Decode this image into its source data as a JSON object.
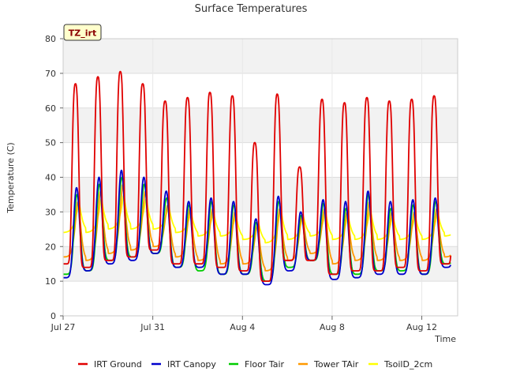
{
  "chart_data": {
    "type": "line",
    "title": "Surface Temperatures",
    "tag": "TZ_irt",
    "xlabel": "Time",
    "ylabel": "Temperature (C)",
    "xlim": [
      0,
      17.6
    ],
    "ylim": [
      0,
      80
    ],
    "yticks": [
      0,
      10,
      20,
      30,
      40,
      50,
      60,
      70,
      80
    ],
    "xticks": [
      {
        "day": 0,
        "label": "Jul 27"
      },
      {
        "day": 4,
        "label": "Jul 31"
      },
      {
        "day": 8,
        "label": "Aug 4"
      },
      {
        "day": 12,
        "label": "Aug 8"
      },
      {
        "day": 16,
        "label": "Aug 12"
      }
    ],
    "grid": true,
    "legend_position": "bottom",
    "daily_peaks": {
      "days": [
        "Jul 27",
        "Jul 28",
        "Jul 29",
        "Jul 30",
        "Jul 31",
        "Aug 1",
        "Aug 2",
        "Aug 3",
        "Aug 4",
        "Aug 5",
        "Aug 6",
        "Aug 7",
        "Aug 8",
        "Aug 9",
        "Aug 10",
        "Aug 11",
        "Aug 12",
        "Aug 13"
      ],
      "note_units": "C"
    },
    "series": [
      {
        "name": "IRT Ground",
        "color": "#e00000",
        "daily_max": [
          67,
          69,
          70.5,
          67,
          62,
          63,
          64.5,
          63.5,
          50,
          64,
          43,
          62.5,
          61.5,
          63,
          62,
          62.5,
          63.5,
          62
        ],
        "daily_min": [
          15,
          14,
          16,
          17,
          19,
          15,
          15,
          14,
          13,
          10,
          16,
          16,
          12,
          13,
          13,
          14,
          13,
          15
        ]
      },
      {
        "name": "IRT Canopy",
        "color": "#0000cc",
        "daily_max": [
          37,
          40,
          42,
          40,
          36,
          33,
          34,
          33,
          28,
          34.5,
          30,
          33.5,
          33,
          36,
          33,
          33.5,
          34,
          33
        ],
        "daily_min": [
          11,
          13,
          15,
          16,
          18,
          14,
          14,
          12,
          12,
          9,
          13,
          16,
          10.5,
          11,
          12,
          12,
          12,
          14
        ]
      },
      {
        "name": "Floor Tair",
        "color": "#00cc00",
        "daily_max": [
          35,
          38,
          40,
          38,
          34,
          32,
          33,
          32,
          27,
          33,
          29,
          32.5,
          31,
          35,
          31,
          32,
          33,
          32
        ],
        "daily_min": [
          12,
          13,
          16,
          17,
          18,
          14,
          13,
          12,
          12,
          10,
          14,
          16,
          12,
          12,
          13,
          13,
          12,
          15
        ]
      },
      {
        "name": "Tower TAir",
        "color": "#ff9900",
        "daily_max": [
          33,
          36,
          38,
          36,
          32,
          31,
          31,
          30,
          26,
          31,
          29,
          31,
          30,
          33,
          30,
          30,
          31,
          30
        ],
        "daily_min": [
          17,
          16,
          18,
          19,
          20,
          17,
          16,
          15,
          15,
          13,
          16,
          18,
          15,
          16,
          16,
          16,
          16,
          17
        ]
      },
      {
        "name": "TsoilD_2cm",
        "color": "#ffff00",
        "daily_max": [
          33,
          34,
          35,
          34,
          32,
          30,
          30,
          29,
          27,
          31,
          29,
          30,
          29,
          31,
          29,
          29,
          30,
          29
        ],
        "daily_min": [
          24,
          24,
          25,
          25,
          25,
          24,
          23,
          23,
          22,
          21,
          22,
          23,
          22,
          22,
          22,
          22,
          22,
          23
        ]
      }
    ]
  }
}
